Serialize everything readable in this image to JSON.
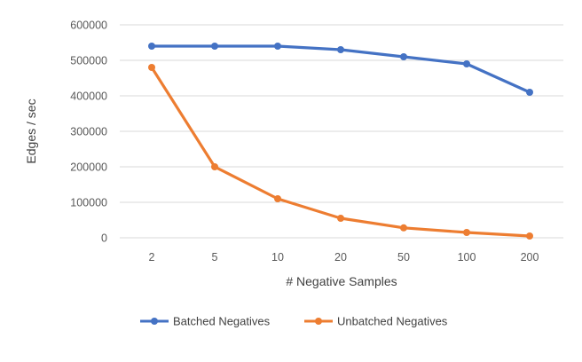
{
  "chart_data": {
    "type": "line",
    "categories": [
      "2",
      "5",
      "10",
      "20",
      "50",
      "100",
      "200"
    ],
    "series": [
      {
        "name": "Batched Negatives",
        "values": [
          540000,
          540000,
          540000,
          530000,
          510000,
          490000,
          410000
        ],
        "color": "#4472c4"
      },
      {
        "name": "Unbatched Negatives",
        "values": [
          480000,
          200000,
          110000,
          55000,
          28000,
          15000,
          5000
        ],
        "color": "#ed7d31"
      }
    ],
    "yticks": [
      "0",
      "100000",
      "200000",
      "300000",
      "400000",
      "500000",
      "600000"
    ],
    "ylim": [
      0,
      600000
    ],
    "xlabel": "# Negative Samples",
    "ylabel": "Edges / sec",
    "grid": true,
    "legend_position": "bottom",
    "gridline_color": "#d9d9d9"
  }
}
